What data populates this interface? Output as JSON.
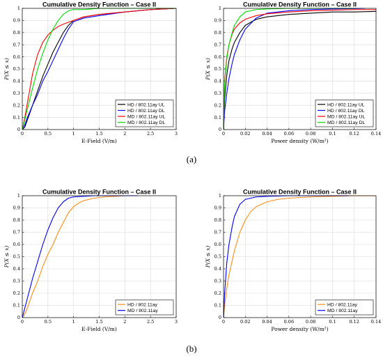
{
  "figure": {
    "panel_labels": [
      "(a)",
      "(b)"
    ]
  },
  "chart_data": [
    {
      "type": "line",
      "title": "Cumulative Density Function – Case II",
      "xlabel": "E-Field (V/m)",
      "ylabel": "P(X ≤ x)",
      "xlim": [
        0,
        3
      ],
      "ylim": [
        0,
        1
      ],
      "xticks": [
        "0",
        "0.5",
        "1",
        "1.5",
        "2",
        "2.5",
        "3"
      ],
      "yticks": [
        "0",
        "0.1",
        "0.2",
        "0.3",
        "0.4",
        "0.5",
        "0.6",
        "0.7",
        "0.8",
        "0.9",
        "1"
      ],
      "grid": true,
      "legend_position": "bottom-right",
      "series": [
        {
          "name": "HD / 802.11ay UL",
          "color": "#000000",
          "x": [
            0,
            0.05,
            0.1,
            0.2,
            0.3,
            0.4,
            0.5,
            0.6,
            0.7,
            0.8,
            0.9,
            1.0,
            1.2,
            1.5,
            2.0,
            2.5,
            3.0
          ],
          "y": [
            0,
            0.02,
            0.08,
            0.2,
            0.32,
            0.44,
            0.54,
            0.64,
            0.72,
            0.8,
            0.86,
            0.9,
            0.93,
            0.95,
            0.97,
            0.99,
            1.0
          ]
        },
        {
          "name": "HD / 802.11ay DL",
          "color": "#0000ff",
          "x": [
            0,
            0.05,
            0.1,
            0.2,
            0.3,
            0.4,
            0.5,
            0.6,
            0.7,
            0.8,
            0.9,
            1.0,
            1.2,
            1.5,
            2.0,
            2.5,
            3.0
          ],
          "y": [
            0,
            0.04,
            0.1,
            0.2,
            0.29,
            0.4,
            0.48,
            0.57,
            0.66,
            0.75,
            0.83,
            0.89,
            0.92,
            0.94,
            0.97,
            0.99,
            1.0
          ]
        },
        {
          "name": "MD / 802.11ay UL",
          "color": "#ff0000",
          "x": [
            0,
            0.05,
            0.1,
            0.2,
            0.3,
            0.4,
            0.5,
            0.6,
            0.7,
            0.8,
            1.0,
            1.2,
            1.5,
            2.0,
            2.5,
            3.0
          ],
          "y": [
            0,
            0.1,
            0.22,
            0.46,
            0.62,
            0.72,
            0.78,
            0.82,
            0.85,
            0.87,
            0.9,
            0.93,
            0.95,
            0.97,
            0.99,
            1.0
          ]
        },
        {
          "name": "MD / 802.11ay DL",
          "color": "#00dd00",
          "x": [
            0,
            0.05,
            0.1,
            0.2,
            0.3,
            0.4,
            0.5,
            0.6,
            0.7,
            0.8,
            0.9,
            1.0,
            1.2,
            1.5,
            2.0,
            2.5,
            3.0
          ],
          "y": [
            0,
            0.08,
            0.17,
            0.34,
            0.5,
            0.63,
            0.74,
            0.83,
            0.9,
            0.95,
            0.98,
            0.99,
            0.99,
            1.0,
            1.0,
            1.0,
            1.0
          ]
        }
      ]
    },
    {
      "type": "line",
      "title": "Cumulative Density Function – Case II",
      "xlabel": "Power density (W/m²)",
      "ylabel": "P(X ≤ x)",
      "xlim": [
        0,
        0.14
      ],
      "ylim": [
        0,
        1
      ],
      "xticks": [
        "0",
        "0.02",
        "0.04",
        "0.06",
        "0.08",
        "0.1",
        "0.12",
        "0.14"
      ],
      "yticks": [
        "0",
        "0.1",
        "0.2",
        "0.3",
        "0.4",
        "0.5",
        "0.6",
        "0.7",
        "0.8",
        "0.9",
        "1"
      ],
      "grid": true,
      "legend_position": "bottom-right",
      "series": [
        {
          "name": "HD / 802.11ay UL",
          "color": "#000000",
          "x": [
            0,
            0.001,
            0.003,
            0.005,
            0.008,
            0.01,
            0.015,
            0.02,
            0.03,
            0.04,
            0.06,
            0.08,
            0.1,
            0.12,
            0.14
          ],
          "y": [
            0,
            0.25,
            0.45,
            0.57,
            0.67,
            0.72,
            0.8,
            0.86,
            0.91,
            0.93,
            0.95,
            0.96,
            0.97,
            0.97,
            0.975
          ]
        },
        {
          "name": "HD / 802.11ay DL",
          "color": "#0000ff",
          "x": [
            0,
            0.001,
            0.003,
            0.005,
            0.008,
            0.01,
            0.015,
            0.02,
            0.03,
            0.04,
            0.06,
            0.08,
            0.1,
            0.12,
            0.13
          ],
          "y": [
            0,
            0.15,
            0.3,
            0.42,
            0.55,
            0.62,
            0.74,
            0.83,
            0.92,
            0.96,
            0.98,
            0.99,
            0.995,
            0.998,
            1.0
          ]
        },
        {
          "name": "MD / 802.11ay UL",
          "color": "#ff0000",
          "x": [
            0,
            0.001,
            0.003,
            0.005,
            0.008,
            0.01,
            0.015,
            0.02,
            0.03,
            0.04,
            0.06,
            0.08,
            0.1,
            0.12,
            0.14
          ],
          "y": [
            0,
            0.4,
            0.6,
            0.7,
            0.79,
            0.83,
            0.88,
            0.91,
            0.94,
            0.955,
            0.97,
            0.98,
            0.985,
            0.99,
            0.99
          ]
        },
        {
          "name": "MD / 802.11ay DL",
          "color": "#00dd00",
          "x": [
            0,
            0.001,
            0.003,
            0.005,
            0.008,
            0.01,
            0.015,
            0.02,
            0.03,
            0.04,
            0.06,
            0.08,
            0.1,
            0.12
          ],
          "y": [
            0,
            0.38,
            0.58,
            0.7,
            0.8,
            0.86,
            0.93,
            0.97,
            0.99,
            0.995,
            1.0,
            1.0,
            1.0,
            1.0
          ]
        }
      ]
    },
    {
      "type": "line",
      "title": "Cumulative Density Function – Case II",
      "xlabel": "E-Field (V/m)",
      "ylabel": "P(X ≤ x)",
      "xlim": [
        0,
        3
      ],
      "ylim": [
        0,
        1
      ],
      "xticks": [
        "0",
        "0.5",
        "1",
        "1.5",
        "2",
        "2.5",
        "3"
      ],
      "yticks": [
        "0",
        "0.1",
        "0.2",
        "0.3",
        "0.4",
        "0.5",
        "0.6",
        "0.7",
        "0.8",
        "0.9",
        "1"
      ],
      "grid": true,
      "legend_position": "bottom-right",
      "series": [
        {
          "name": "HD / 802.11ay",
          "color": "#ff8c1a",
          "x": [
            0,
            0.05,
            0.1,
            0.2,
            0.3,
            0.4,
            0.5,
            0.6,
            0.7,
            0.8,
            0.9,
            1.0,
            1.1,
            1.2,
            1.4,
            1.6,
            1.8,
            2.0,
            2.25
          ],
          "y": [
            0,
            0.03,
            0.08,
            0.2,
            0.3,
            0.42,
            0.52,
            0.6,
            0.7,
            0.78,
            0.86,
            0.91,
            0.94,
            0.96,
            0.98,
            0.99,
            0.995,
            1.0,
            1.0
          ]
        },
        {
          "name": "MD / 802.11ay",
          "color": "#0000ff",
          "x": [
            0,
            0.05,
            0.1,
            0.2,
            0.3,
            0.4,
            0.5,
            0.6,
            0.7,
            0.8,
            0.9,
            1.0,
            1.2,
            1.4,
            1.6,
            2.0,
            2.25
          ],
          "y": [
            0,
            0.08,
            0.16,
            0.32,
            0.46,
            0.6,
            0.72,
            0.82,
            0.9,
            0.95,
            0.98,
            0.99,
            0.995,
            1.0,
            1.0,
            1.0,
            1.0
          ]
        }
      ]
    },
    {
      "type": "line",
      "title": "Cumulative Density Function – Case II",
      "xlabel": "Power density (W/m²)",
      "ylabel": "P(X ≤ x)",
      "xlim": [
        0,
        0.14
      ],
      "ylim": [
        0,
        1
      ],
      "xticks": [
        "0",
        "0.02",
        "0.04",
        "0.06",
        "0.08",
        "0.1",
        "0.12",
        "0.14"
      ],
      "yticks": [
        "0",
        "0.1",
        "0.2",
        "0.3",
        "0.4",
        "0.5",
        "0.6",
        "0.7",
        "0.8",
        "0.9",
        "1"
      ],
      "grid": true,
      "legend_position": "bottom-right",
      "series": [
        {
          "name": "HD / 802.11ay",
          "color": "#ff8c1a",
          "x": [
            0,
            0.001,
            0.003,
            0.005,
            0.008,
            0.01,
            0.015,
            0.02,
            0.025,
            0.03,
            0.04,
            0.05,
            0.06,
            0.08,
            0.1,
            0.12,
            0.14
          ],
          "y": [
            0,
            0.1,
            0.24,
            0.35,
            0.47,
            0.55,
            0.7,
            0.8,
            0.87,
            0.91,
            0.95,
            0.97,
            0.98,
            0.99,
            0.995,
            1.0,
            1.0
          ]
        },
        {
          "name": "MD / 802.11ay",
          "color": "#0000ff",
          "x": [
            0,
            0.001,
            0.003,
            0.005,
            0.008,
            0.01,
            0.015,
            0.02,
            0.03,
            0.04,
            0.06,
            0.08,
            0.1,
            0.115
          ],
          "y": [
            0,
            0.2,
            0.45,
            0.6,
            0.75,
            0.83,
            0.93,
            0.97,
            0.99,
            0.995,
            1.0,
            1.0,
            1.0,
            1.0
          ]
        }
      ]
    }
  ]
}
